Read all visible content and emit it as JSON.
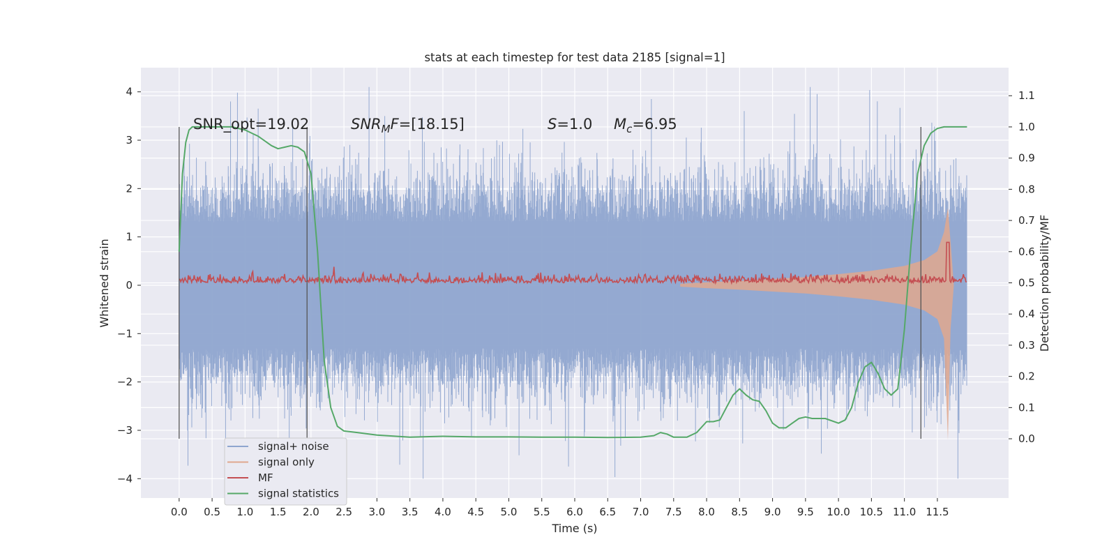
{
  "chart_data": {
    "type": "line",
    "title": "stats at each timestep for test data 2185 [signal=1]",
    "xlabel": "Time (s)",
    "ylabel": "Whitened strain",
    "ylabel_right": "Detection probability/MF",
    "xlim": [
      -0.58,
      12.58
    ],
    "ylim": [
      -4.4,
      4.5
    ],
    "ylim_right": [
      -0.19,
      1.19
    ],
    "x_ticks": [
      0.0,
      0.5,
      1.0,
      1.5,
      2.0,
      2.5,
      3.0,
      3.5,
      4.0,
      4.5,
      5.0,
      5.5,
      6.0,
      6.5,
      7.0,
      7.5,
      8.0,
      8.5,
      9.0,
      9.5,
      10.0,
      10.5,
      11.0,
      11.5
    ],
    "x_tick_labels": [
      "0.0",
      "0.5",
      "1.0",
      "1.5",
      "2.0",
      "2.5",
      "3.0",
      "3.5",
      "4.0",
      "4.5",
      "5.0",
      "5.5",
      "6.0",
      "6.5",
      "7.0",
      "7.5",
      "8.0",
      "8.5",
      "9.0",
      "9.5",
      "10.0",
      "10.5",
      "11.0",
      "11.5"
    ],
    "y_ticks": [
      -4,
      -3,
      -2,
      -1,
      0,
      1,
      2,
      3,
      4
    ],
    "y_tick_labels": [
      "−4",
      "−3",
      "−2",
      "−1",
      "0",
      "1",
      "2",
      "3",
      "4"
    ],
    "y_ticks_right": [
      0.0,
      0.1,
      0.2,
      0.3,
      0.4,
      0.5,
      0.6,
      0.7,
      0.8,
      0.9,
      1.0,
      1.1
    ],
    "y_tick_labels_right": [
      "0.0",
      "0.1",
      "0.2",
      "0.3",
      "0.4",
      "0.5",
      "0.6",
      "0.7",
      "0.8",
      "0.9",
      "1.0",
      "1.1"
    ],
    "grid": true,
    "legend_position": "lower-left",
    "annotations": {
      "snr_opt": "SNR_opt=19.02",
      "snr_mf_sym": "SNR",
      "snr_mf_sub": "M",
      "snr_mf_rest": "F",
      "snr_mf_value": "=[18.15]",
      "s_sym": "S",
      "s_value": "=1.0",
      "mc_sym": "M",
      "mc_sub": "c",
      "mc_value": "=6.95"
    },
    "vertical_markers": [
      0.0,
      1.94,
      11.25
    ],
    "series": [
      {
        "name": "signal+ noise",
        "color": "#8fa5cf",
        "axis": "left",
        "style": "dense-noise",
        "x_range": [
          0.0,
          11.95
        ],
        "typical_amplitude": 1.3,
        "peak_max": 4.1,
        "peak_min": -4.0
      },
      {
        "name": "signal only",
        "color": "#e0a88e",
        "axis": "left",
        "style": "chirp-envelope",
        "envelope_x": [
          7.6,
          8.0,
          8.5,
          9.0,
          9.5,
          10.0,
          10.5,
          11.0,
          11.3,
          11.5,
          11.6,
          11.66,
          11.7,
          11.75
        ],
        "envelope_y": [
          0.03,
          0.06,
          0.09,
          0.13,
          0.17,
          0.23,
          0.3,
          0.4,
          0.52,
          0.7,
          1.1,
          1.6,
          0.9,
          0.0
        ]
      },
      {
        "name": "MF",
        "color": "#c44e52",
        "axis": "right",
        "style": "noisy-line",
        "baseline": 0.5,
        "noise_amplitude": 0.02,
        "peak_x": 11.66,
        "peak_y": 0.63
      },
      {
        "name": "signal statistics",
        "color": "#55a868",
        "axis": "right",
        "x": [
          0.0,
          0.05,
          0.1,
          0.15,
          0.2,
          0.3,
          0.5,
          0.8,
          1.0,
          1.2,
          1.4,
          1.5,
          1.6,
          1.7,
          1.8,
          1.9,
          2.0,
          2.1,
          2.2,
          2.3,
          2.4,
          2.5,
          2.7,
          3.0,
          3.5,
          4.0,
          4.5,
          5.0,
          5.5,
          6.0,
          6.5,
          7.0,
          7.2,
          7.3,
          7.4,
          7.5,
          7.7,
          7.85,
          8.0,
          8.1,
          8.2,
          8.3,
          8.4,
          8.5,
          8.6,
          8.7,
          8.8,
          8.9,
          9.0,
          9.1,
          9.2,
          9.3,
          9.4,
          9.5,
          9.6,
          9.8,
          10.0,
          10.1,
          10.2,
          10.3,
          10.4,
          10.5,
          10.6,
          10.7,
          10.8,
          10.9,
          11.0,
          11.1,
          11.2,
          11.3,
          11.4,
          11.5,
          11.6,
          11.7,
          11.95
        ],
        "y": [
          0.6,
          0.85,
          0.95,
          0.99,
          1.0,
          1.0,
          1.0,
          1.0,
          0.99,
          0.97,
          0.94,
          0.93,
          0.935,
          0.94,
          0.935,
          0.92,
          0.85,
          0.6,
          0.25,
          0.1,
          0.04,
          0.025,
          0.02,
          0.012,
          0.005,
          0.008,
          0.006,
          0.006,
          0.005,
          0.005,
          0.004,
          0.005,
          0.01,
          0.02,
          0.015,
          0.005,
          0.005,
          0.02,
          0.055,
          0.055,
          0.06,
          0.1,
          0.14,
          0.16,
          0.14,
          0.125,
          0.12,
          0.09,
          0.05,
          0.035,
          0.035,
          0.05,
          0.065,
          0.07,
          0.065,
          0.065,
          0.05,
          0.06,
          0.1,
          0.18,
          0.23,
          0.245,
          0.21,
          0.16,
          0.14,
          0.16,
          0.35,
          0.62,
          0.85,
          0.94,
          0.98,
          0.995,
          1.0,
          1.0,
          1.0
        ]
      }
    ]
  }
}
